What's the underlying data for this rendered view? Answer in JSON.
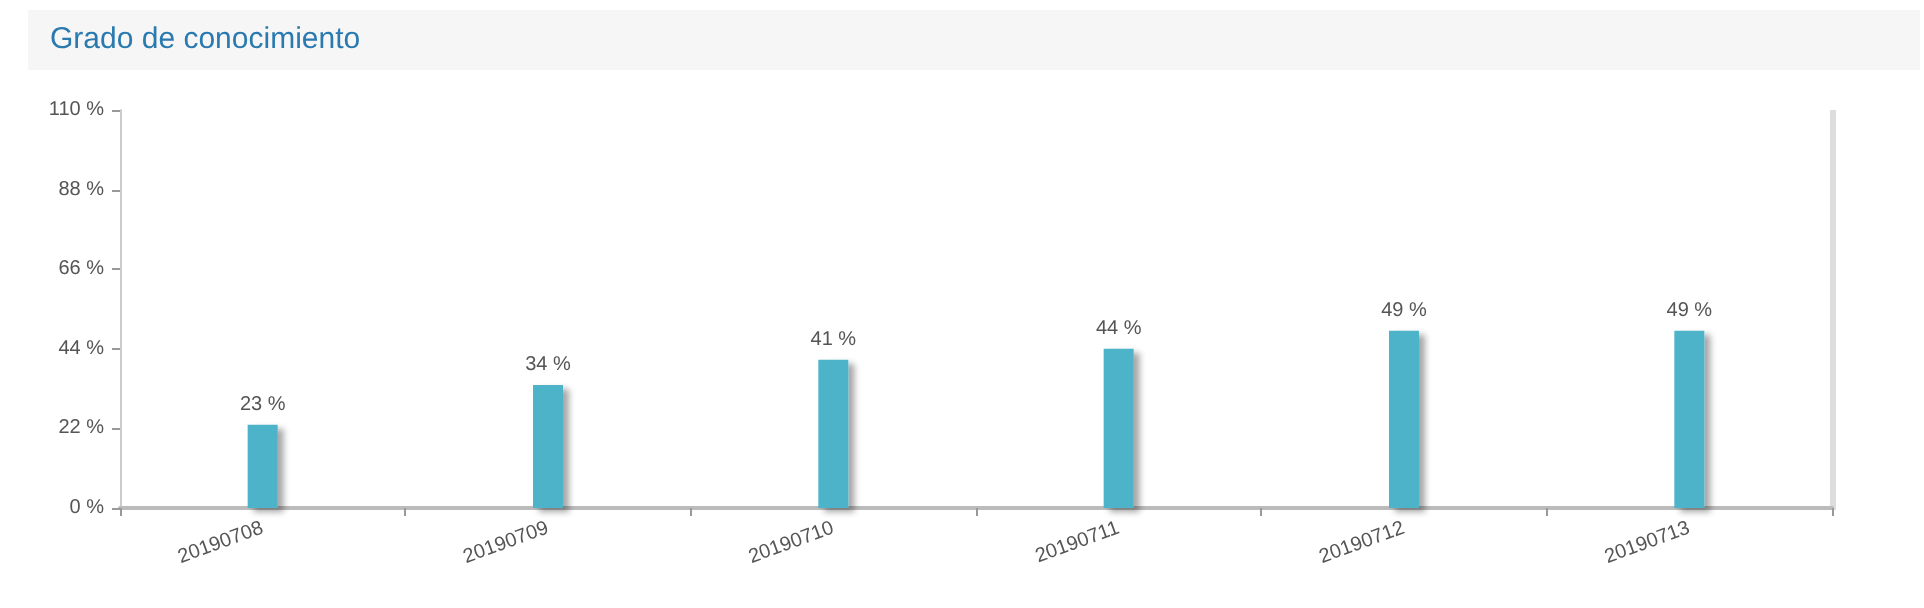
{
  "chart_data": {
    "type": "bar",
    "title": "Grado de conocimiento",
    "categories": [
      "20190708",
      "20190709",
      "20190710",
      "20190711",
      "20190712",
      "20190713"
    ],
    "values": [
      23,
      34,
      41,
      44,
      49,
      49
    ],
    "value_labels": [
      "23 %",
      "34 %",
      "41 %",
      "44 %",
      "49 %",
      "49 %"
    ],
    "color": "#4db3c8",
    "ylim": [
      0,
      110
    ],
    "yticks": [
      {
        "value": 0,
        "label": "0 %"
      },
      {
        "value": 22,
        "label": "22 %"
      },
      {
        "value": 44,
        "label": "44 %"
      },
      {
        "value": 66,
        "label": "66 %"
      },
      {
        "value": 88,
        "label": "88 %"
      },
      {
        "value": 110,
        "label": "110 %"
      }
    ],
    "grid": false
  }
}
